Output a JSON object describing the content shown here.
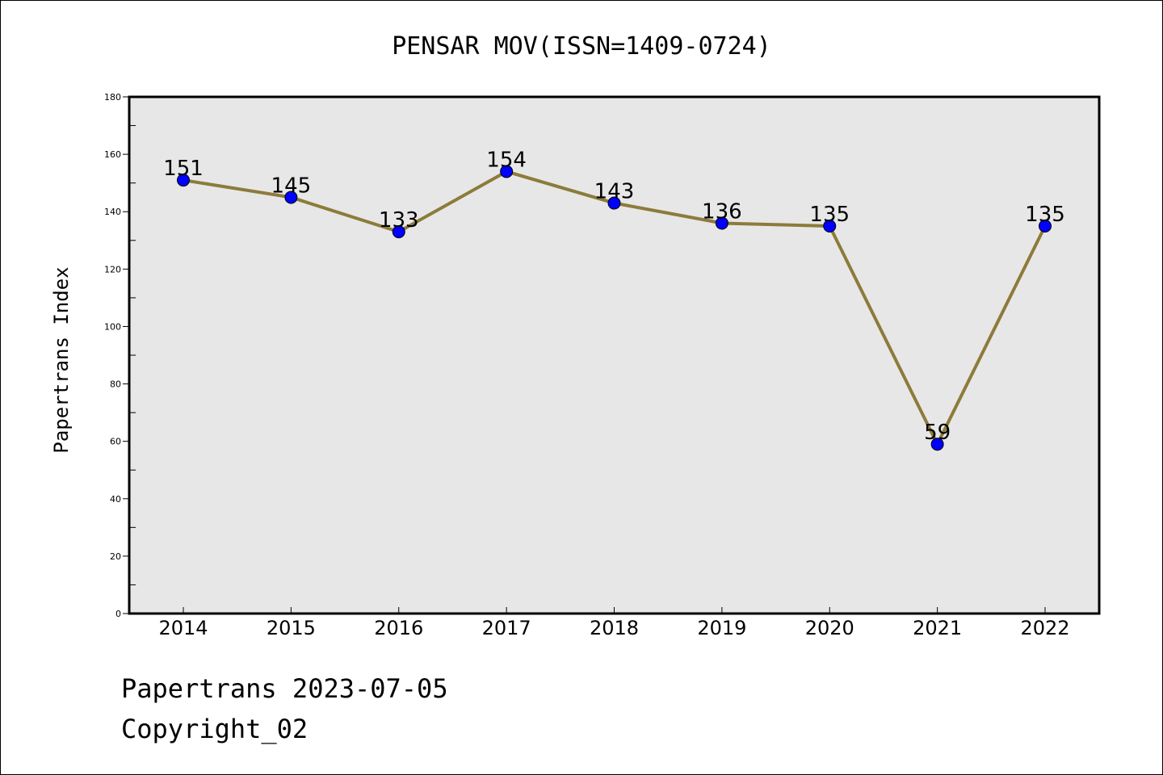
{
  "chart_data": {
    "type": "line",
    "title": "PENSAR MOV(ISSN=1409-0724)",
    "xlabel": "",
    "ylabel": "Papertrans Index",
    "categories": [
      "2014",
      "2015",
      "2016",
      "2017",
      "2018",
      "2019",
      "2020",
      "2021",
      "2022"
    ],
    "series": [
      {
        "values": [
          151,
          145,
          133,
          154,
          143,
          136,
          135,
          59,
          135
        ]
      }
    ],
    "ylim": [
      0,
      180
    ],
    "yticks": [
      0,
      20,
      40,
      60,
      80,
      100,
      120,
      140,
      160,
      180
    ],
    "grid": false,
    "legend": "none",
    "data_labels": true
  },
  "footer": {
    "line1": "Papertrans 2023-07-05",
    "line2": "Copyright_02"
  },
  "colors": {
    "plot_bg": "#e7e7e7",
    "line": "#8c7b3a",
    "marker": "#0000ff",
    "axis": "#000000"
  }
}
